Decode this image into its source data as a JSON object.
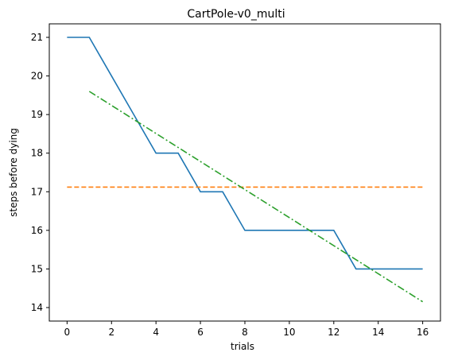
{
  "chart_data": {
    "type": "line",
    "title": "CartPole-v0_multi",
    "xlabel": "trials",
    "ylabel": "steps before dying",
    "xlim": [
      -0.8,
      16.8
    ],
    "ylim": [
      13.65,
      21.35
    ],
    "xticks": [
      0,
      2,
      4,
      6,
      8,
      10,
      12,
      14,
      16
    ],
    "yticks": [
      14,
      15,
      16,
      17,
      18,
      19,
      20,
      21
    ],
    "grid": false,
    "legend": "none",
    "series": [
      {
        "color": "#1f77b4",
        "style": "solid",
        "x": [
          0,
          1,
          2,
          3,
          4,
          5,
          6,
          7,
          8,
          9,
          10,
          11,
          12,
          13,
          14,
          15,
          16
        ],
        "y": [
          21,
          21,
          20,
          19,
          18,
          18,
          17,
          17,
          16,
          16,
          16,
          16,
          16,
          15,
          15,
          15,
          15
        ]
      },
      {
        "color": "#ff7f0e",
        "style": "dashed",
        "x": [
          0,
          16
        ],
        "y": [
          17.12,
          17.12
        ]
      },
      {
        "color": "#2ca02c",
        "style": "dashdot",
        "x": [
          1,
          16
        ],
        "y": [
          19.6,
          14.15
        ]
      }
    ]
  }
}
